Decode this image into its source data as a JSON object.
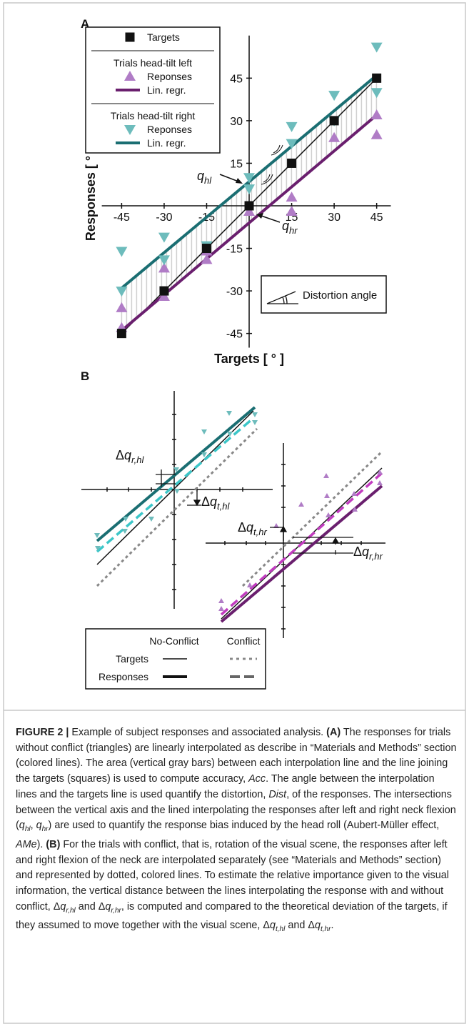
{
  "chart_data": {
    "type": "scatter",
    "panel_label": "A",
    "xlabel": "Targets [ ° ]",
    "ylabel": "Responses [ ° ]",
    "xlim": [
      -52,
      50
    ],
    "ylim": [
      -50,
      60
    ],
    "xticks": [
      -45,
      -30,
      -15,
      15,
      30,
      45
    ],
    "yticks": [
      -45,
      -30,
      -15,
      15,
      30,
      45
    ],
    "legend": {
      "corner": "upper left",
      "groups": [
        "Trials head-tilt left",
        "Trials head-tilt right"
      ]
    },
    "series": [
      {
        "name": "Targets",
        "color": "#111111",
        "marker": "square",
        "line": true,
        "width": 1.5,
        "group": null,
        "x": [
          -45,
          -30,
          -15,
          0,
          15,
          30,
          45
        ],
        "values": [
          -45,
          -30,
          -15,
          0,
          15,
          30,
          45
        ]
      },
      {
        "name": "Reponses",
        "color": "#b07cc6",
        "marker": "triangle-up",
        "line": false,
        "group": 0,
        "x": [
          -45,
          -45,
          -30,
          -30,
          -15,
          -15,
          0,
          15,
          15,
          30,
          45,
          45
        ],
        "values": [
          -36,
          -43,
          -22,
          -32,
          -16,
          -19,
          -2,
          3,
          -2,
          24,
          32,
          25
        ]
      },
      {
        "name": "Lin. regr.",
        "color": "#6a1f6e",
        "marker": null,
        "line": true,
        "width": 4,
        "group": 0,
        "x": [
          -45,
          45
        ],
        "values": [
          -44,
          32
        ]
      },
      {
        "name": "Reponses",
        "color": "#6dbcbc",
        "marker": "triangle-down",
        "line": false,
        "group": 1,
        "x": [
          -45,
          -45,
          -30,
          -30,
          -15,
          0,
          0,
          15,
          15,
          30,
          30,
          45,
          45
        ],
        "values": [
          -16,
          -30,
          -11,
          -19,
          -14,
          10,
          6,
          28,
          22,
          39,
          30,
          56,
          40
        ]
      },
      {
        "name": "Lin. regr.",
        "color": "#1a6e72",
        "marker": null,
        "line": true,
        "width": 4,
        "group": 1,
        "x": [
          -45,
          45
        ],
        "values": [
          -29,
          46
        ]
      }
    ],
    "annotations": [
      {
        "var": "q",
        "sub": "hl"
      },
      {
        "var": "q",
        "sub": "hr"
      },
      {
        "text": "Distortion angle"
      }
    ]
  },
  "panel_b": {
    "label": "B",
    "annotations": [
      {
        "prefix": "Δ",
        "var": "q",
        "sub": "r,hl"
      },
      {
        "prefix": "Δ",
        "var": "q",
        "sub": "t,hl"
      },
      {
        "prefix": "Δ",
        "var": "q",
        "sub": "t,hr"
      },
      {
        "prefix": "Δ",
        "var": "q",
        "sub": "r,hr"
      }
    ],
    "legend": {
      "columns": [
        "No-Conflict",
        "Conflict"
      ],
      "rows": [
        "Targets",
        "Responses"
      ]
    }
  },
  "caption": [
    {
      "text": "FIGURE 2 |",
      "style": "bold"
    },
    {
      "text": " Example of subject responses and associated analysis. ",
      "style": "normal"
    },
    {
      "text": "(A)",
      "style": "bold"
    },
    {
      "text": " The responses for trials without conflict (triangles) are linearly interpolated as describe in “Materials and Methods” section (colored lines). The area (vertical gray bars) between each interpolation line and the line joining the targets (squares) is used to compute accuracy, ",
      "style": "normal"
    },
    {
      "text": "Acc",
      "style": "italic"
    },
    {
      "text": ". The angle between the interpolation lines and the targets line is used quantify the distortion, ",
      "style": "normal"
    },
    {
      "text": "Dist",
      "style": "italic"
    },
    {
      "text": ", of the responses. The intersections between the vertical axis and the lined interpolating the responses after left and right neck flexion (",
      "style": "normal"
    },
    {
      "text": "q",
      "style": "italic"
    },
    {
      "text": "hl",
      "style": "sub"
    },
    {
      "text": ", ",
      "style": "normal"
    },
    {
      "text": "q",
      "style": "italic"
    },
    {
      "text": "hr",
      "style": "sub"
    },
    {
      "text": ") are used to quantify the response bias induced by the head roll (Aubert-Müller effect, ",
      "style": "normal"
    },
    {
      "text": "AMe",
      "style": "italic"
    },
    {
      "text": "). ",
      "style": "normal"
    },
    {
      "text": "(B)",
      "style": "bold"
    },
    {
      "text": " For the trials with conflict, that is, rotation of the visual scene, the responses after left and right flexion of the neck are interpolated separately (see “Materials and Methods” section) and represented by dotted, colored lines. To estimate the relative importance given to the visual information, the vertical distance between the lines interpolating the response with and without conflict, Δ",
      "style": "normal"
    },
    {
      "text": "q",
      "style": "italic"
    },
    {
      "text": "r,hl",
      "style": "sub"
    },
    {
      "text": " and Δ",
      "style": "normal"
    },
    {
      "text": "q",
      "style": "italic"
    },
    {
      "text": "r,hr",
      "style": "sub"
    },
    {
      "text": ", is computed and compared to the theoretical deviation of the targets, if they assumed to move together with the visual scene, Δ",
      "style": "normal"
    },
    {
      "text": "q",
      "style": "italic"
    },
    {
      "text": "t,hl",
      "style": "sub"
    },
    {
      "text": " and Δ",
      "style": "normal"
    },
    {
      "text": "q",
      "style": "italic"
    },
    {
      "text": "t,hr",
      "style": "sub"
    },
    {
      "text": ".",
      "style": "normal"
    }
  ]
}
